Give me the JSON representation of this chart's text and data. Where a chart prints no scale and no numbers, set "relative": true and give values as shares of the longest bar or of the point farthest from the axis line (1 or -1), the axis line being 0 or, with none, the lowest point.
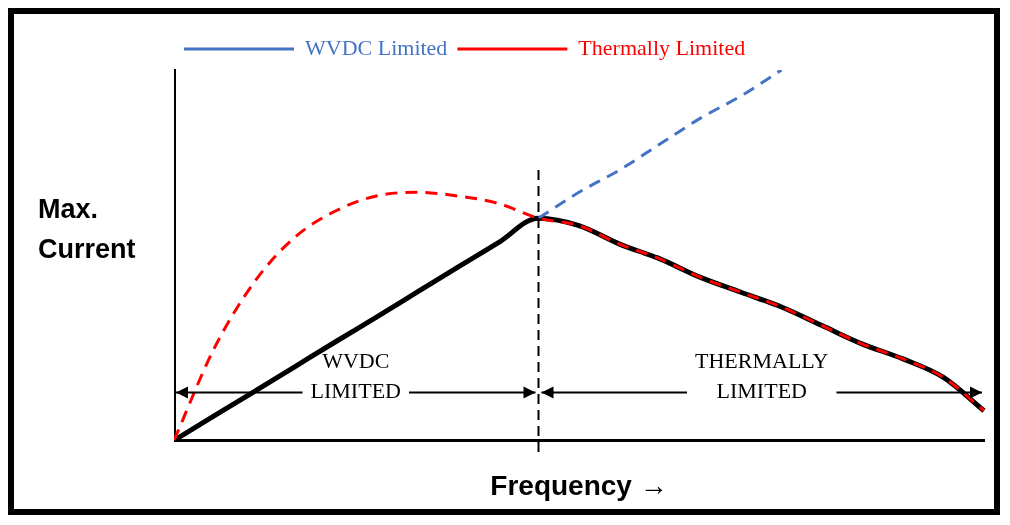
{
  "chart_data": {
    "type": "line",
    "relative": true,
    "xlabel": "Frequency →",
    "ylabel": "Max. Current",
    "categories": [
      null,
      null,
      null,
      null,
      null,
      null,
      null,
      null,
      null,
      null,
      null,
      null,
      null,
      null,
      null,
      null,
      null,
      null,
      null,
      null,
      null
    ],
    "series": [
      {
        "name": "WVDC Limited",
        "color": "#4472c4",
        "line_style": "dashed",
        "values": [
          null,
          null,
          null,
          null,
          null,
          null,
          null,
          null,
          null,
          0.6,
          0.67,
          0.73,
          0.8,
          0.87,
          0.93,
          1,
          null,
          null,
          null,
          null,
          null
        ]
      },
      {
        "name": "Thermally Limited",
        "color": "#ff0000",
        "line_style": "dashed",
        "values": [
          0,
          0.25,
          0.43,
          0.55,
          0.62,
          0.66,
          0.67,
          0.66,
          0.64,
          0.6,
          0.58,
          0.53,
          0.49,
          0.44,
          0.4,
          0.36,
          0.31,
          0.26,
          0.22,
          0.17,
          0.08
        ]
      },
      {
        "color": "#000000",
        "line_style": "solid",
        "values": [
          0,
          0.067,
          0.133,
          0.2,
          0.267,
          0.333,
          0.4,
          0.467,
          0.533,
          0.6,
          0.58,
          0.53,
          0.49,
          0.44,
          0.4,
          0.36,
          0.31,
          0.26,
          0.22,
          0.17,
          0.08
        ]
      }
    ],
    "annotations": [
      "WVDC\nLIMITED",
      "THERMALLY\nLIMITED"
    ],
    "legend": "top",
    "grid": false,
    "marker": "none"
  }
}
